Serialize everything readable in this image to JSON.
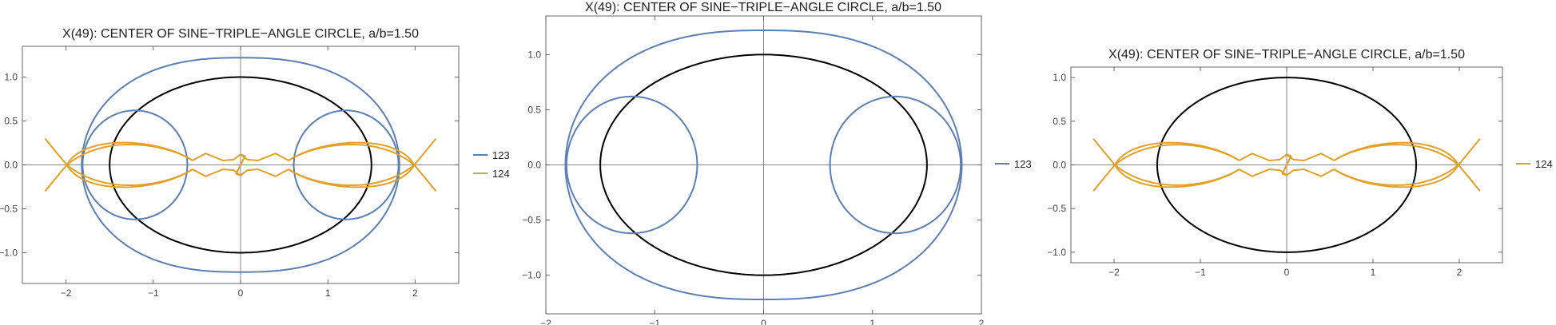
{
  "colors": {
    "s123": "#5b7fb5",
    "s124": "#e3a024",
    "reference": "#000000"
  },
  "chart_data": [
    {
      "type": "line",
      "title": "X(49): CENTER OF SINE−TRIPLE−ANGLE CIRCLE, a/b=1.50",
      "xlim": [
        -2.5,
        2.5
      ],
      "ylim": [
        -1.35,
        1.35
      ],
      "xticks": [
        -2,
        -1,
        0,
        1,
        2
      ],
      "yticks": [
        -1.0,
        -0.5,
        0.0,
        0.5,
        1.0
      ],
      "legend": "right",
      "series": [
        {
          "name": "123",
          "color": "#5b7fb5"
        },
        {
          "name": "124",
          "color": "#e3a024"
        }
      ],
      "reference_ellipse": {
        "a": 1.5,
        "b": 1.0
      }
    },
    {
      "type": "line",
      "title": "X(49): CENTER OF SINE−TRIPLE−ANGLE CIRCLE, a/b=1.50",
      "xlim": [
        -2.0,
        2.0
      ],
      "ylim": [
        -1.35,
        1.35
      ],
      "xticks": [
        -2,
        -1,
        0,
        1,
        2
      ],
      "yticks": [
        -1.0,
        -0.5,
        0.0,
        0.5,
        1.0
      ],
      "legend": "right",
      "series": [
        {
          "name": "123",
          "color": "#5b7fb5"
        }
      ],
      "reference_ellipse": {
        "a": 1.5,
        "b": 1.0
      }
    },
    {
      "type": "line",
      "title": "X(49): CENTER OF SINE−TRIPLE−ANGLE CIRCLE, a/b=1.50",
      "xlim": [
        -2.5,
        2.5
      ],
      "ylim": [
        -1.12,
        1.12
      ],
      "xticks": [
        -2,
        -1,
        0,
        1,
        2
      ],
      "yticks": [
        -1.0,
        -0.5,
        0.0,
        0.5,
        1.0
      ],
      "legend": "right",
      "series": [
        {
          "name": "124",
          "color": "#e3a024"
        }
      ],
      "reference_ellipse": {
        "a": 1.5,
        "b": 1.0
      }
    }
  ]
}
